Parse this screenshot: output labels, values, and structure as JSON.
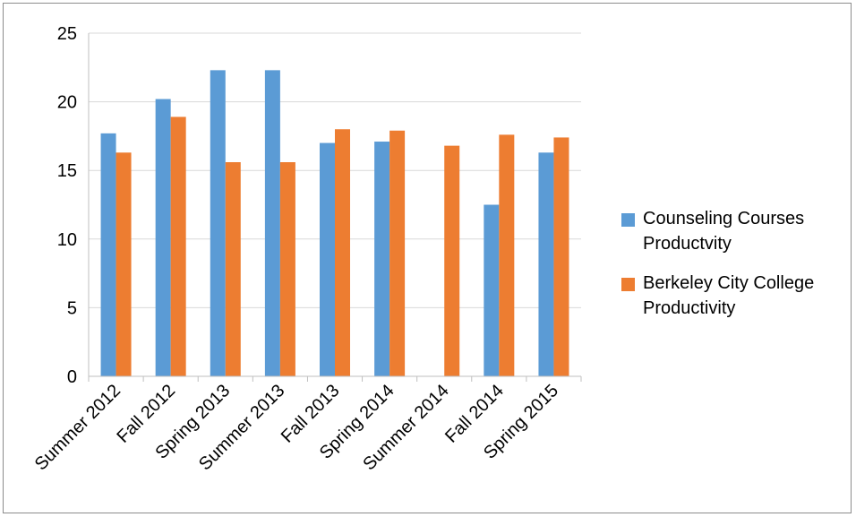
{
  "chart_data": {
    "type": "bar",
    "title": "",
    "xlabel": "",
    "ylabel": "",
    "ylim": [
      0,
      25
    ],
    "yticks": [
      0,
      5,
      10,
      15,
      20,
      25
    ],
    "grid": true,
    "legend_position": "right",
    "categories": [
      "Summer 2012",
      "Fall 2012",
      "Spring 2013",
      "Summer 2013",
      "Fall 2013",
      "Spring 2014",
      "Summer 2014",
      "Fall 2014",
      "Spring 2015"
    ],
    "series": [
      {
        "name": "Counseling Courses Productvity",
        "color": "#5b9bd5",
        "values": [
          17.7,
          20.2,
          22.3,
          22.3,
          17.0,
          17.1,
          null,
          12.5,
          16.3
        ]
      },
      {
        "name": "Berkeley City College Productivity",
        "color": "#ed7d31",
        "values": [
          16.3,
          18.9,
          15.6,
          15.6,
          18.0,
          17.9,
          16.8,
          17.6,
          17.4
        ]
      }
    ]
  }
}
